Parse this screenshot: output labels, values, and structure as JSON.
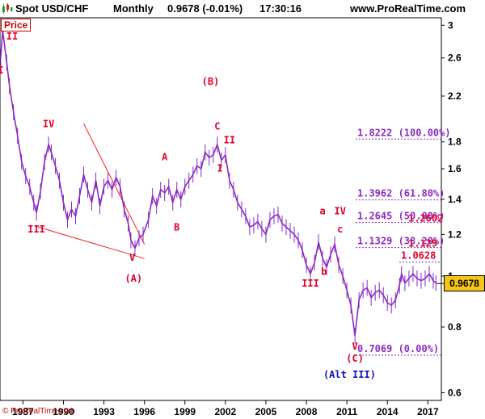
{
  "header": {
    "symbol": "Spot USD/CHF",
    "timeframe": "Monthly",
    "price_change": "0.9678 (-0.01%)",
    "time": "17:30:16",
    "site": "www.ProRealTime.com"
  },
  "price_label": "Price",
  "last_price": "0.9678",
  "copyright": "© ProRealTime.com",
  "colors": {
    "candles": "#8a2bc2",
    "waves": "#e0002a",
    "fib": "#8a2bc2",
    "trendline": "#ff2020",
    "alt": "#1010c0",
    "last_price_bg": "#f5c518"
  },
  "chart_data": {
    "type": "line",
    "scale": "log",
    "ylim": [
      0.58,
      3.1
    ],
    "xlim": [
      1985.3,
      2018.0
    ],
    "xticks": [
      {
        "value": 1987,
        "label": "1987"
      },
      {
        "value": 1990,
        "label": "1990"
      },
      {
        "value": 1993,
        "label": "1993"
      },
      {
        "value": 1996,
        "label": "1996"
      },
      {
        "value": 1999,
        "label": "1999"
      },
      {
        "value": 2002,
        "label": "2002"
      },
      {
        "value": 2005,
        "label": "2005"
      },
      {
        "value": 2008,
        "label": "2008"
      },
      {
        "value": 2011,
        "label": "2011"
      },
      {
        "value": 2014,
        "label": "2014"
      },
      {
        "value": 2017,
        "label": "2017"
      }
    ],
    "yticks": [
      {
        "value": 3,
        "label": "3"
      },
      {
        "value": 2.6,
        "label": "2.6"
      },
      {
        "value": 2.2,
        "label": "2.2"
      },
      {
        "value": 1.8,
        "label": "1.8"
      },
      {
        "value": 1.6,
        "label": "1.6"
      },
      {
        "value": 1.4,
        "label": "1.4"
      },
      {
        "value": 1.2,
        "label": "1.2"
      },
      {
        "value": 1,
        "label": "1"
      },
      {
        "value": 0.8,
        "label": "0.8"
      },
      {
        "value": 0.6,
        "label": "0.6"
      }
    ],
    "series": [
      {
        "x": [
          1985.35,
          1985.5,
          1985.8,
          1986.0,
          1986.3,
          1986.6,
          1986.9,
          1987.2,
          1987.5,
          1987.8,
          1988.0,
          1988.3,
          1988.6,
          1988.9,
          1989.1,
          1989.4,
          1989.7,
          1990.0,
          1990.3,
          1990.6,
          1990.9,
          1991.2,
          1991.5,
          1991.8,
          1992.1,
          1992.4,
          1992.7,
          1993.0,
          1993.3,
          1993.6,
          1993.9,
          1994.2,
          1994.5,
          1994.8,
          1995.0,
          1995.3,
          1995.6,
          1995.9,
          1996.3,
          1996.6,
          1996.9,
          1997.2,
          1997.5,
          1997.8,
          1998.1,
          1998.4,
          1998.7,
          1999.0,
          1999.3,
          1999.6,
          1999.9,
          2000.2,
          2000.5,
          2000.8,
          2001.1,
          2001.4,
          2001.7,
          2002.0,
          2002.3,
          2002.6,
          2002.9,
          2003.2,
          2003.5,
          2003.8,
          2004.1,
          2004.4,
          2004.7,
          2005.0,
          2005.3,
          2005.6,
          2005.9,
          2006.2,
          2006.5,
          2006.8,
          2007.1,
          2007.4,
          2007.7,
          2008.0,
          2008.3,
          2008.6,
          2008.9,
          2009.2,
          2009.5,
          2009.8,
          2010.1,
          2010.4,
          2010.7,
          2011.0,
          2011.3,
          2011.6,
          2011.9,
          2012.2,
          2012.5,
          2012.8,
          2013.1,
          2013.4,
          2013.7,
          2014.0,
          2014.3,
          2014.6,
          2014.9,
          2015.05,
          2015.3,
          2015.6,
          2015.9,
          2016.2,
          2016.5,
          2016.8,
          2017.1,
          2017.4,
          2017.6
        ],
        "y": [
          2.6,
          2.93,
          2.55,
          2.3,
          2.05,
          1.85,
          1.65,
          1.55,
          1.48,
          1.38,
          1.32,
          1.45,
          1.65,
          1.78,
          1.72,
          1.62,
          1.52,
          1.38,
          1.28,
          1.34,
          1.3,
          1.42,
          1.56,
          1.46,
          1.38,
          1.52,
          1.36,
          1.48,
          1.52,
          1.46,
          1.54,
          1.48,
          1.34,
          1.26,
          1.17,
          1.13,
          1.18,
          1.2,
          1.28,
          1.42,
          1.36,
          1.46,
          1.44,
          1.48,
          1.38,
          1.46,
          1.4,
          1.48,
          1.52,
          1.56,
          1.62,
          1.6,
          1.72,
          1.68,
          1.7,
          1.78,
          1.66,
          1.7,
          1.52,
          1.46,
          1.38,
          1.34,
          1.3,
          1.24,
          1.25,
          1.27,
          1.23,
          1.2,
          1.28,
          1.3,
          1.31,
          1.26,
          1.24,
          1.22,
          1.2,
          1.17,
          1.12,
          1.05,
          1.01,
          1.06,
          1.16,
          1.08,
          1.04,
          1.1,
          1.15,
          1.05,
          1.0,
          0.94,
          0.88,
          0.77,
          0.9,
          0.94,
          0.95,
          0.91,
          0.93,
          0.94,
          0.92,
          0.89,
          0.88,
          0.9,
          0.96,
          1.01,
          0.97,
          0.99,
          1.01,
          0.99,
          0.98,
          0.99,
          1.01,
          0.98,
          0.97
        ]
      }
    ],
    "fib_levels": [
      {
        "label": "1.8222 (100.00%)",
        "value": 1.8222
      },
      {
        "label": "1.3962 (61.80%)",
        "value": 1.3962
      },
      {
        "label": "1.2645 (50.00%)",
        "value": 1.2645
      },
      {
        "label": "1.1329 (38.20%)",
        "value": 1.1329
      },
      {
        "label": "1.0628",
        "value": 1.0628
      },
      {
        "label": "0.7069 (0.00%)",
        "value": 0.7069
      }
    ],
    "fib_overlap_labels": [
      {
        "label": "1.2602",
        "value": 1.2602
      },
      {
        "label": "1.129",
        "value": 1.129
      }
    ],
    "wave_labels": [
      {
        "text": "I",
        "x": 1985.35,
        "y": 2.43
      },
      {
        "text": "II",
        "x": 1986.2,
        "y": 2.82
      },
      {
        "text": "III",
        "x": 1988.0,
        "y": 1.21
      },
      {
        "text": "IV",
        "x": 1988.9,
        "y": 1.92
      },
      {
        "text": "V",
        "x": 1995.1,
        "y": 1.07
      },
      {
        "text": "(A)",
        "x": 1995.2,
        "y": 0.975
      },
      {
        "text": "A",
        "x": 1997.5,
        "y": 1.66
      },
      {
        "text": "B",
        "x": 1998.4,
        "y": 1.22
      },
      {
        "text": "(B)",
        "x": 2000.9,
        "y": 2.31
      },
      {
        "text": "C",
        "x": 2001.4,
        "y": 1.9
      },
      {
        "text": "II",
        "x": 2002.3,
        "y": 1.79
      },
      {
        "text": "I",
        "x": 2001.6,
        "y": 1.58
      },
      {
        "text": "III",
        "x": 2008.3,
        "y": 0.955
      },
      {
        "text": "a",
        "x": 2009.2,
        "y": 1.31
      },
      {
        "text": "IV",
        "x": 2010.5,
        "y": 1.31
      },
      {
        "text": "b",
        "x": 2009.3,
        "y": 1.005
      },
      {
        "text": "c",
        "x": 2010.5,
        "y": 1.21
      },
      {
        "text": "V",
        "x": 2011.6,
        "y": 0.725
      },
      {
        "text": "(C)",
        "x": 2011.6,
        "y": 0.687
      }
    ],
    "alt_label": {
      "text": "(Alt III)",
      "x": 2011.2,
      "y": 0.64
    },
    "trendlines": [
      {
        "x1": 1991.5,
        "y1": 1.95,
        "x2": 1996.0,
        "y2": 1.15
      },
      {
        "x1": 1988.1,
        "y1": 1.24,
        "x2": 1996.0,
        "y2": 1.08
      }
    ]
  }
}
